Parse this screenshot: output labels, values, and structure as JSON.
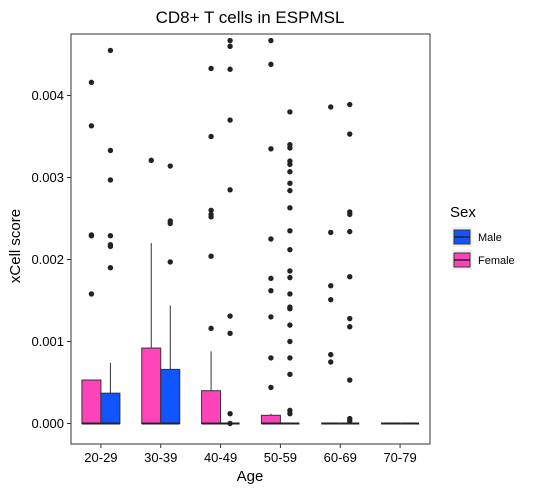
{
  "chart_data": {
    "type": "boxplot",
    "title": "CD8+ T cells in ESPMSL",
    "xlabel": "Age",
    "ylabel": "xCell score",
    "categories": [
      "20-29",
      "30-39",
      "40-49",
      "50-59",
      "60-69",
      "70-79"
    ],
    "ylim": [
      -0.00025,
      0.00475
    ],
    "yticks": [
      {
        "value": 0.0,
        "label": "0.000"
      },
      {
        "value": 0.001,
        "label": "0.001"
      },
      {
        "value": 0.002,
        "label": "0.002"
      },
      {
        "value": 0.003,
        "label": "0.003"
      },
      {
        "value": 0.004,
        "label": "0.004"
      }
    ],
    "grid": false,
    "legend": {
      "title": "Sex",
      "placement": "right",
      "entries": [
        {
          "name": "Male",
          "color": "#1155ff"
        },
        {
          "name": "Female",
          "color": "#ff44bb"
        }
      ]
    },
    "series": [
      {
        "name": "Female",
        "color": "#ff44bb",
        "boxes": [
          {
            "category": "20-29",
            "q1": 0.0,
            "median": 0.0,
            "q3": 0.00053,
            "whisker_low": 0.0,
            "whisker_high": 0.00053,
            "outliers": [
              0.00416,
              0.00363,
              0.0023,
              0.00229,
              0.00158
            ]
          },
          {
            "category": "30-39",
            "q1": 0.0,
            "median": 0.0,
            "q3": 0.00092,
            "whisker_low": 0.0,
            "whisker_high": 0.0022,
            "outliers": [
              0.00321
            ]
          },
          {
            "category": "40-49",
            "q1": 0.0,
            "median": 0.0,
            "q3": 0.0004,
            "whisker_low": 0.0,
            "whisker_high": 0.00088,
            "outliers": [
              0.00433,
              0.0035,
              0.0026,
              0.00255,
              0.00252,
              0.00204,
              0.00116
            ]
          },
          {
            "category": "50-59",
            "q1": 0.0,
            "median": 0.0,
            "q3": 0.0001,
            "whisker_low": 0.0,
            "whisker_high": 0.00012,
            "outliers": [
              0.00467,
              0.00438,
              0.00335,
              0.00225,
              0.00177,
              0.00162,
              0.0013,
              0.0008,
              0.00044
            ]
          },
          {
            "category": "60-69",
            "q1": 0.0,
            "median": 0.0,
            "q3": 0.0,
            "whisker_low": 0.0,
            "whisker_high": 0.0,
            "outliers": [
              0.00386,
              0.00233,
              0.00168,
              0.00151,
              0.00084,
              0.00075
            ]
          },
          {
            "category": "70-79",
            "q1": 0.0,
            "median": 0.0,
            "q3": 0.0,
            "whisker_low": 0.0,
            "whisker_high": 0.0,
            "outliers": []
          }
        ]
      },
      {
        "name": "Male",
        "color": "#1155ff",
        "boxes": [
          {
            "category": "20-29",
            "q1": 0.0,
            "median": 0.0,
            "q3": 0.00037,
            "whisker_low": 0.0,
            "whisker_high": 0.00074,
            "outliers": [
              0.00455,
              0.00333,
              0.00297,
              0.00229,
              0.00218,
              0.00216,
              0.0019
            ]
          },
          {
            "category": "30-39",
            "q1": 0.0,
            "median": 0.0,
            "q3": 0.00066,
            "whisker_low": 0.0,
            "whisker_high": 0.00144,
            "outliers": [
              0.00314,
              0.00247,
              0.00244,
              0.00197
            ]
          },
          {
            "category": "40-49",
            "q1": 0.0,
            "median": 0.0,
            "q3": 0.0,
            "whisker_low": 0.0,
            "whisker_high": 0.0,
            "outliers": [
              0.00467,
              0.0046,
              0.00432,
              0.0037,
              0.00285,
              0.00131,
              0.0011,
              0.00012,
              0.0
            ]
          },
          {
            "category": "50-59",
            "q1": 0.0,
            "median": 0.0,
            "q3": 0.0,
            "whisker_low": 0.0,
            "whisker_high": 0.0,
            "outliers": [
              0.0038,
              0.0034,
              0.00336,
              0.0032,
              0.00316,
              0.00307,
              0.00293,
              0.00284,
              0.00263,
              0.00235,
              0.00212,
              0.00186,
              0.00178,
              0.00158,
              0.00142,
              0.0014,
              0.0012,
              0.001,
              0.0008,
              0.0006,
              0.00016,
              0.00012
            ]
          },
          {
            "category": "60-69",
            "q1": 0.0,
            "median": 0.0,
            "q3": 0.0,
            "whisker_low": 0.0,
            "whisker_high": 0.0,
            "outliers": [
              0.00389,
              0.00353,
              0.00258,
              0.00255,
              0.00234,
              0.00179,
              0.00128,
              0.00118,
              0.00053,
              6e-05,
              3e-05
            ]
          },
          {
            "category": "70-79",
            "q1": 0.0,
            "median": 0.0,
            "q3": 0.0,
            "whisker_low": 0.0,
            "whisker_high": 0.0,
            "outliers": []
          }
        ]
      }
    ]
  }
}
